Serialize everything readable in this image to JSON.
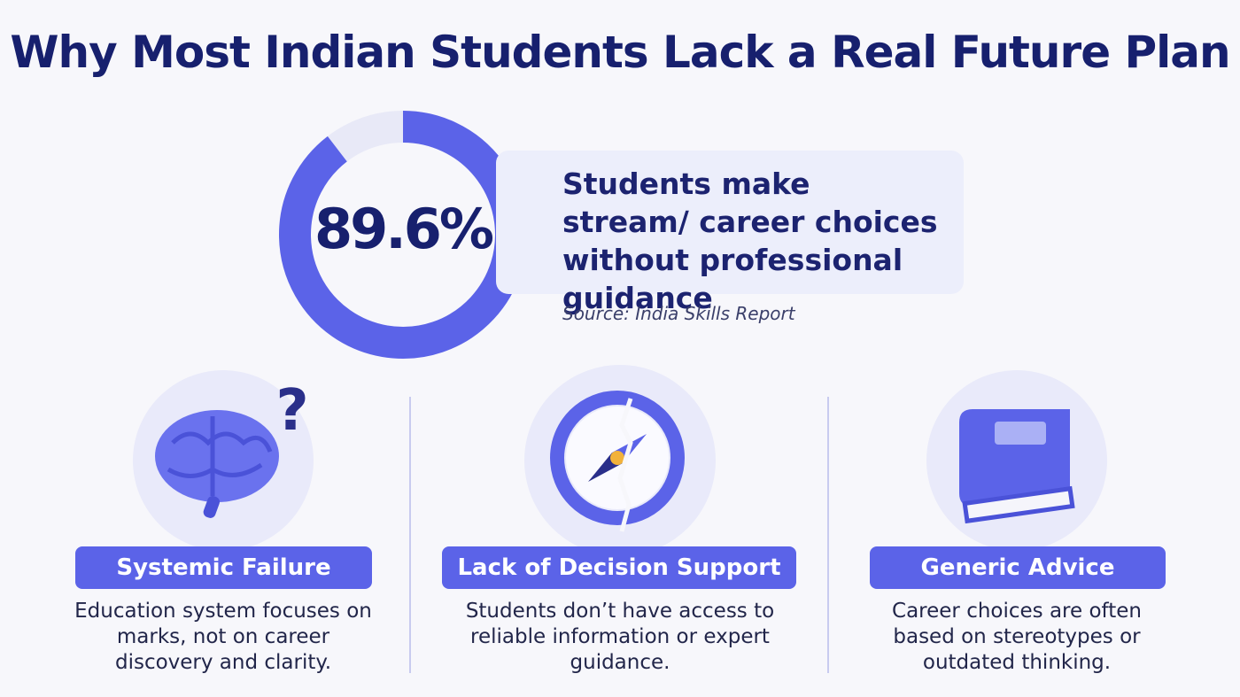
{
  "header": {
    "title": "Why Most Indian Students Lack a Real Future Plan"
  },
  "stat": {
    "value": 89.6,
    "value_label": "89.6%",
    "description": "Students make stream/ career choices without professional guidance",
    "source": "Source: India Skills Report"
  },
  "cards": [
    {
      "title": "Systemic Failure",
      "text": "Education system focuses on marks, not on career discovery and clarity."
    },
    {
      "title": "Lack of Decision Support",
      "text": "Students don’t have access to reliable information or expert guidance."
    },
    {
      "title": "Generic Advice",
      "text": "Career choices are often based on stereotypes or outdated thinking."
    }
  ]
}
